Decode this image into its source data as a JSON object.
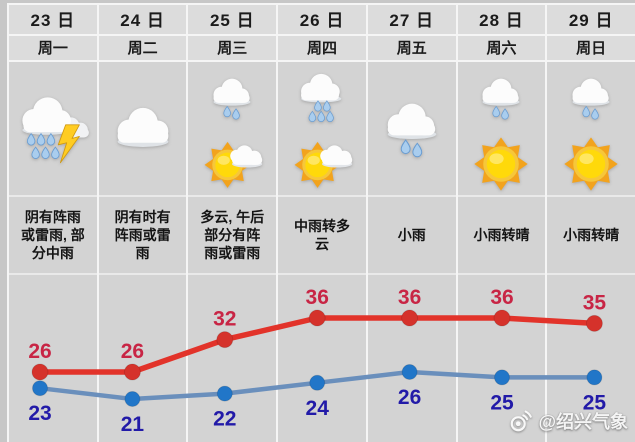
{
  "board": {
    "watermark": "@绍兴气象"
  },
  "columns": [
    {
      "date": "23 日",
      "weekday": "周一",
      "icons": [
        "thunder-rain"
      ],
      "desc": "阴有阵雨或雷雨, 部分中雨",
      "high": 26,
      "low": 23
    },
    {
      "date": "24 日",
      "weekday": "周二",
      "icons": [
        "cloud"
      ],
      "desc": "阴有时有阵雨或雷雨",
      "high": 26,
      "low": 21
    },
    {
      "date": "25 日",
      "weekday": "周三",
      "icons": [
        "rain",
        "sun-cloud"
      ],
      "desc": "多云, 午后部分有阵雨或雷雨",
      "high": 32,
      "low": 22
    },
    {
      "date": "26 日",
      "weekday": "周四",
      "icons": [
        "rain-heavy",
        "sun-cloud"
      ],
      "desc": "中雨转多云",
      "high": 36,
      "low": 24
    },
    {
      "date": "27 日",
      "weekday": "周五",
      "icons": [
        "rain"
      ],
      "desc": "小雨",
      "high": 36,
      "low": 26
    },
    {
      "date": "28 日",
      "weekday": "周六",
      "icons": [
        "rain",
        "sun"
      ],
      "desc": "小雨转晴",
      "high": 36,
      "low": 25
    },
    {
      "date": "29 日",
      "weekday": "周日",
      "icons": [
        "rain",
        "sun"
      ],
      "desc": "小雨转晴",
      "high": 35,
      "low": 25
    }
  ],
  "chart_data": {
    "type": "line",
    "categories": [
      "23日",
      "24日",
      "25日",
      "26日",
      "27日",
      "28日",
      "29日"
    ],
    "series": [
      {
        "name": "high-temp",
        "values": [
          26,
          26,
          32,
          36,
          36,
          36,
          35
        ],
        "line_color": "#e2332a",
        "dot_color": "#d5322b",
        "label_color": "#c82545"
      },
      {
        "name": "low-temp",
        "values": [
          23,
          21,
          22,
          24,
          26,
          25,
          25
        ],
        "line_color": "#6a8fbc",
        "dot_color": "#2176c8",
        "label_color": "#221aa8"
      }
    ],
    "legend": "none",
    "grid": "vertical-column-lines",
    "ylim": [
      18,
      40
    ]
  },
  "colors": {
    "outer_bg": "#c7c7c7",
    "header_bg": "#dcdcdc",
    "body_bg": "#d3d3d3",
    "gridline": "#f6f6f6"
  }
}
